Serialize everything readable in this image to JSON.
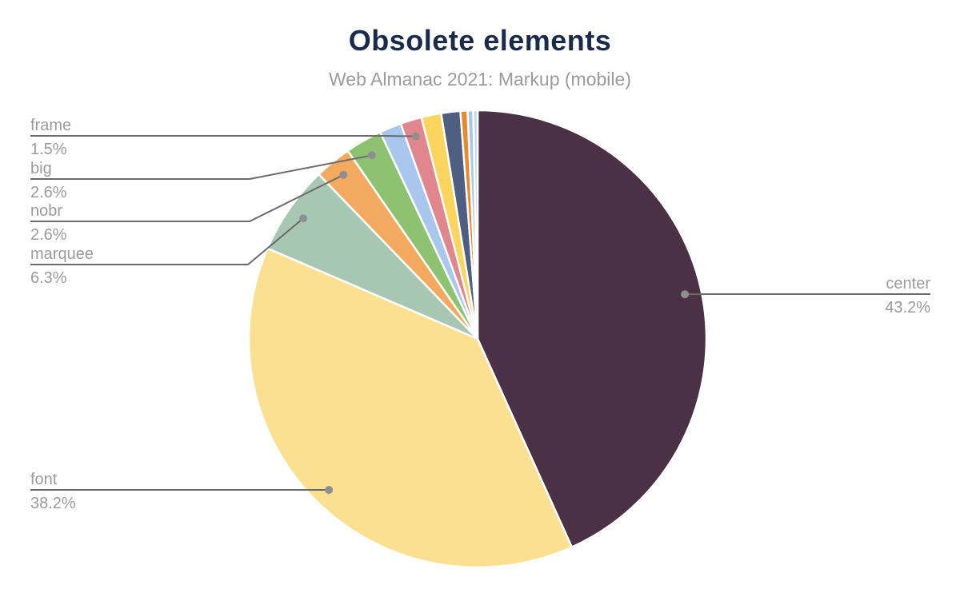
{
  "header": {
    "title": "Obsolete elements",
    "subtitle": "Web Almanac 2021: Markup (mobile)"
  },
  "colors": {
    "title": "#1a2b4a",
    "subtitle": "#9b9b9b",
    "label_text": "#9b9b9b",
    "connector_line": "#6b6b6b",
    "callout_dot": "#8f8f8f",
    "background": "#ffffff",
    "slice_gap": "#ffffff"
  },
  "chart_data": {
    "type": "pie",
    "title": "Obsolete elements",
    "subtitle": "Web Almanac 2021: Markup (mobile)",
    "unit": "%",
    "legend_position": "callout-labels",
    "start_angle_deg": 0,
    "direction": "clockwise",
    "slices": [
      {
        "label": "center",
        "pct_label": "43.2%",
        "value": 43.2,
        "color": "#4a3146"
      },
      {
        "label": "font",
        "pct_label": "38.2%",
        "value": 38.2,
        "color": "#fce092"
      },
      {
        "label": "marquee",
        "pct_label": "6.3%",
        "value": 6.3,
        "color": "#a7c7b2"
      },
      {
        "label": "nobr",
        "pct_label": "2.6%",
        "value": 2.6,
        "color": "#f4a960"
      },
      {
        "label": "big",
        "pct_label": "2.6%",
        "value": 2.6,
        "color": "#8dc370"
      },
      {
        "label": "",
        "pct_label": "",
        "value": 1.55,
        "color": "#a9c7ec"
      },
      {
        "label": "frame",
        "pct_label": "1.5%",
        "value": 1.5,
        "color": "#e2868d"
      },
      {
        "label": "",
        "pct_label": "",
        "value": 1.4,
        "color": "#fbd55e"
      },
      {
        "label": "",
        "pct_label": "",
        "value": 1.35,
        "color": "#4f5f82"
      },
      {
        "label": "",
        "pct_label": "",
        "value": 0.5,
        "color": "#e8892b"
      },
      {
        "label": "",
        "pct_label": "",
        "value": 0.4,
        "color": "#a9c7ec"
      },
      {
        "label": "",
        "pct_label": "",
        "value": 0.3,
        "color": "#bdd7f3"
      }
    ]
  }
}
